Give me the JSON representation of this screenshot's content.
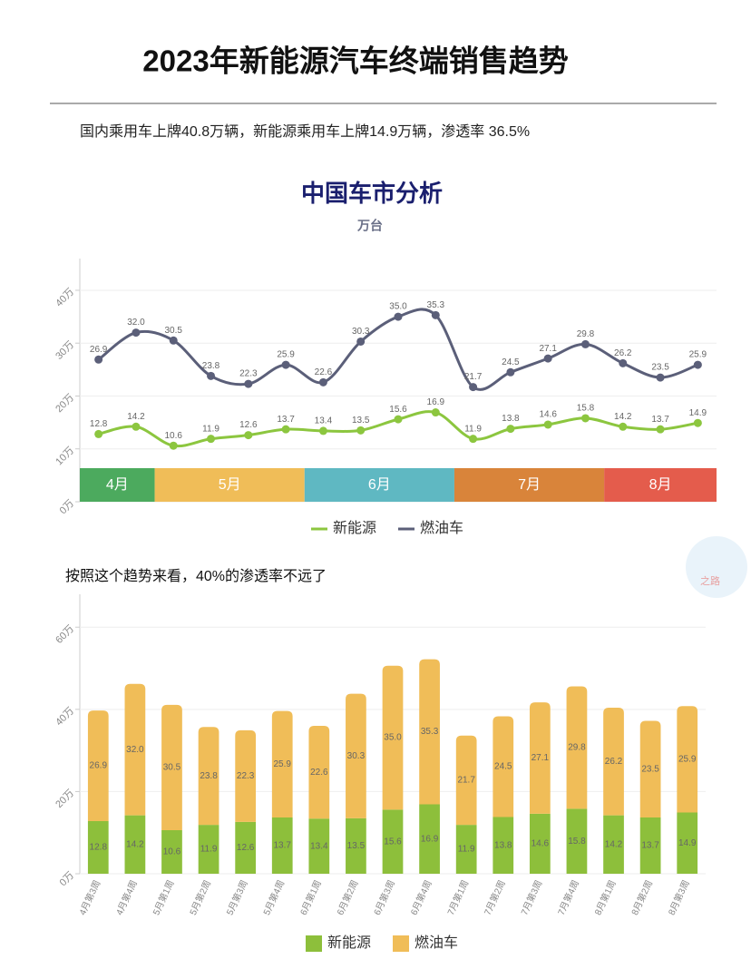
{
  "header": {
    "title": "2023年新能源汽车终端销售趋势",
    "subtitle": "国内乘用车上牌40.8万辆，新能源乘用车上牌14.9万辆，渗透率 36.5%"
  },
  "watermark": "之路",
  "chart_data": [
    {
      "type": "line",
      "title": "中国车市分析",
      "subtitle": "万台",
      "smooth": true,
      "categories": [
        null,
        null,
        null,
        null,
        null,
        null,
        null,
        null,
        null,
        null,
        null,
        null,
        null,
        null,
        null,
        null,
        null
      ],
      "periods": [
        {
          "label": "4月",
          "color": "#4caa5e"
        },
        {
          "label": "5月",
          "color": "#f0bd58"
        },
        {
          "label": "6月",
          "color": "#5fb8c2"
        },
        {
          "label": "7月",
          "color": "#d9843a"
        },
        {
          "label": "8月",
          "color": "#e45c4c"
        }
      ],
      "series": [
        {
          "name": "新能源",
          "color": "#8cc63f",
          "values": [
            12.8,
            14.2,
            10.6,
            11.9,
            12.6,
            13.7,
            13.4,
            13.5,
            15.6,
            16.9,
            11.9,
            13.8,
            14.6,
            15.8,
            14.2,
            13.7,
            14.9
          ],
          "value_labels": [
            "12.8",
            "14.2",
            "10.6",
            "11.9",
            "12.6",
            "13.7",
            "13.4",
            "13.5",
            "15.6",
            "16.9",
            "11.9",
            "13.8",
            "14.6",
            "15.8",
            "14.2",
            "13.7",
            "14.9"
          ]
        },
        {
          "name": "燃油车",
          "color": "#5b5f79",
          "values": [
            26.9,
            32.0,
            30.5,
            23.8,
            22.3,
            25.9,
            22.6,
            30.3,
            35.0,
            35.3,
            21.7,
            24.5,
            27.1,
            29.8,
            26.2,
            23.5,
            25.9
          ],
          "value_labels": [
            "26.9",
            "32.0",
            "30.5",
            "23.8",
            "22.3",
            "25.9",
            "22.6",
            "30.3",
            "35.0",
            "35.3",
            "21.7",
            "24.5",
            "27.1",
            "29.8",
            "26.2",
            "23.5",
            "25.9"
          ]
        }
      ],
      "ylim": [
        0,
        46
      ],
      "yticks": [
        {
          "value": 0,
          "label": "0万"
        },
        {
          "value": 10,
          "label": "10万"
        },
        {
          "value": 20,
          "label": "20万"
        },
        {
          "value": 30,
          "label": "30万"
        },
        {
          "value": 40,
          "label": "40万"
        }
      ],
      "grid": true,
      "legend": "bottom"
    },
    {
      "type": "bar",
      "stacked": true,
      "title": "按照这个趋势来看，40%的渗透率不远了",
      "categories": [
        "4月第3周",
        "4月第4周",
        "5月第1周",
        "5月第2周",
        "5月第3周",
        "5月第4周",
        "6月第1周",
        "6月第2周",
        "6月第3周",
        "6月第4周",
        "7月第1周",
        "7月第2周",
        "7月第3周",
        "7月第4周",
        "8月第1周",
        "8月第2周",
        "8月第3周"
      ],
      "series": [
        {
          "name": "新能源",
          "color": "#8dbf3b",
          "values": [
            12.8,
            14.2,
            10.6,
            11.9,
            12.6,
            13.7,
            13.4,
            13.5,
            15.6,
            16.9,
            11.9,
            13.8,
            14.6,
            15.8,
            14.2,
            13.7,
            14.9
          ],
          "value_labels": [
            "12.8",
            "14.2",
            "10.6",
            "11.9",
            "12.6",
            "13.7",
            "13.4",
            "13.5",
            "15.6",
            "16.9",
            "11.9",
            "13.8",
            "14.6",
            "15.8",
            "14.2",
            "13.7",
            "14.9"
          ]
        },
        {
          "name": "燃油车",
          "color": "#f0bd58",
          "values": [
            26.9,
            32.0,
            30.5,
            23.8,
            22.3,
            25.9,
            22.6,
            30.3,
            35.0,
            35.3,
            21.7,
            24.5,
            27.1,
            29.8,
            26.2,
            23.5,
            25.9
          ],
          "value_labels": [
            "26.9",
            "32.0",
            "30.5",
            "23.8",
            "22.3",
            "25.9",
            "22.6",
            "30.3",
            "35.0",
            "35.3",
            "21.7",
            "24.5",
            "27.1",
            "29.8",
            "26.2",
            "23.5",
            "25.9"
          ]
        }
      ],
      "ylim": [
        0,
        68
      ],
      "yticks": [
        {
          "value": 0,
          "label": "0万"
        },
        {
          "value": 20,
          "label": "20万"
        },
        {
          "value": 40,
          "label": "40万"
        },
        {
          "value": 60,
          "label": "60万"
        }
      ],
      "grid": true,
      "legend": "bottom"
    }
  ]
}
